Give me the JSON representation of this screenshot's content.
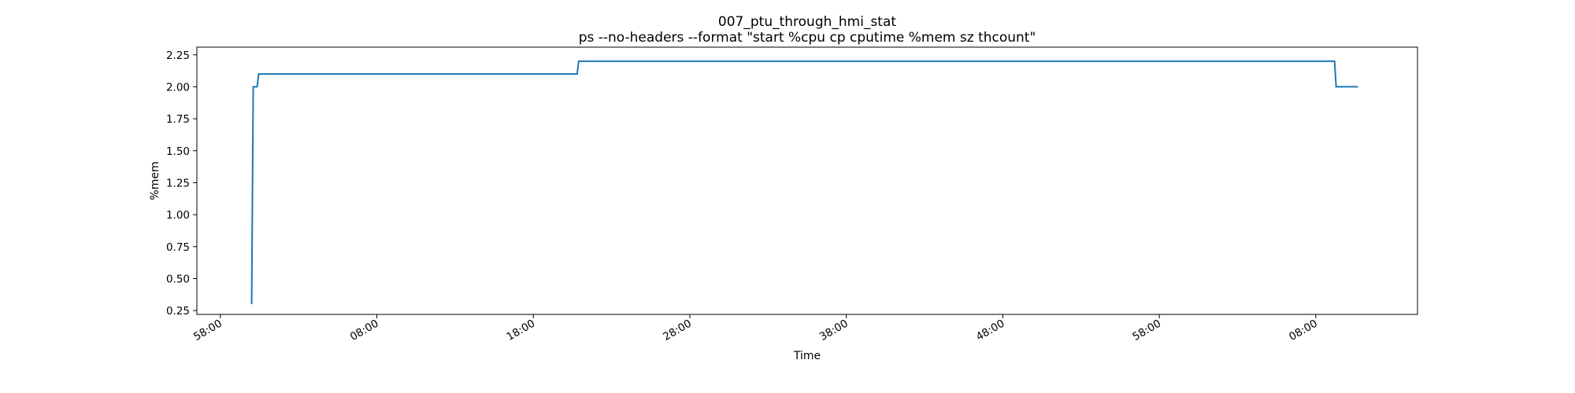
{
  "chart_data": {
    "type": "line",
    "title": "007_ptu_through_hmi_stat",
    "subtitle": "ps --no-headers --format \"start %cpu cp cputime %mem sz thcount\"",
    "xlabel": "Time",
    "ylabel": "%mem",
    "xlim": [
      -1.5,
      76.5
    ],
    "ylim": [
      0.22,
      2.31
    ],
    "x_ticks": [
      0,
      10,
      20,
      30,
      40,
      50,
      60,
      70
    ],
    "x_tick_labels": [
      "58:00",
      "08:00",
      "18:00",
      "28:00",
      "38:00",
      "48:00",
      "58:00",
      "08:00"
    ],
    "y_ticks": [
      0.25,
      0.5,
      0.75,
      1.0,
      1.25,
      1.5,
      1.75,
      2.0,
      2.25
    ],
    "y_tick_labels": [
      "0.25",
      "0.50",
      "0.75",
      "1.00",
      "1.25",
      "1.50",
      "1.75",
      "2.00",
      "2.25"
    ],
    "grid": false,
    "series": [
      {
        "color": "#1f77b4",
        "x": [
          2.0,
          2.1,
          2.2,
          2.35,
          2.45,
          22.8,
          22.9,
          71.2,
          71.3,
          72.7
        ],
        "y": [
          0.3,
          2.0,
          2.0,
          2.0,
          2.1,
          2.1,
          2.2,
          2.2,
          2.0,
          2.0
        ]
      }
    ]
  }
}
